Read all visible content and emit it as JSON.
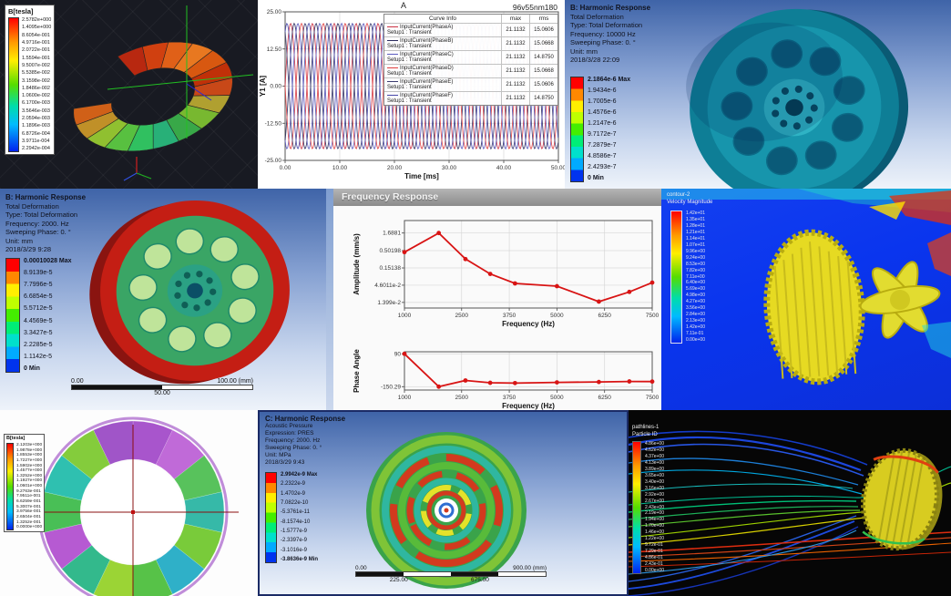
{
  "panels": {
    "flux_torus": {
      "legend_title": "B[tesla]",
      "legend_values": [
        "2.5782e+000",
        "1.4095e+000",
        "8.6054e-001",
        "4.9716e-001",
        "2.0722e-001",
        "1.5594e-001",
        "9.5007e-002",
        "5.5385e-002",
        "3.1598e-002",
        "1.8486e-002",
        "1.0600e-002",
        "6.1700e-003",
        "3.5646e-003",
        "2.0594e-003",
        "1.1896e-003",
        "6.8726e-004",
        "3.9711e-004",
        "2.2942e-004"
      ],
      "segment_colors": [
        "#b82810",
        "#d04010",
        "#e06018",
        "#e87820",
        "#d85810",
        "#c03008",
        "#c84818",
        "#b0a030",
        "#78b830",
        "#38a848",
        "#28b078",
        "#30c060",
        "#58c040",
        "#90c030",
        "#c09028",
        "#d06018"
      ]
    },
    "current_plot": {
      "corner_label": "96v55nm180"
    },
    "harmonic_top": {
      "header": [
        "B: Harmonic Response",
        "Total Deformation",
        "Type: Total Deformation",
        "Frequency: 10000 Hz",
        "Sweeping Phase: 0. °",
        "Unit: mm",
        "2018/3/28 22:09"
      ],
      "legend_values": [
        "2.1864e-6 Max",
        "1.9434e-6",
        "1.7005e-6",
        "1.4576e-6",
        "1.2147e-6",
        "9.7172e-7",
        "7.2879e-7",
        "4.8586e-7",
        "2.4293e-7",
        "0 Min"
      ]
    },
    "harmonic_mid": {
      "header": [
        "B: Harmonic Response",
        "Total Deformation",
        "Type: Total Deformation",
        "Frequency: 2000. Hz",
        "Sweeping Phase: 0. °",
        "Unit: mm",
        "2018/3/29 9:28"
      ],
      "legend_values": [
        "0.00010028 Max",
        "8.9139e-5",
        "7.7996e-5",
        "6.6854e-5",
        "5.5712e-5",
        "4.4569e-5",
        "3.3427e-5",
        "2.2285e-5",
        "1.1142e-5",
        "0 Min"
      ],
      "scale": {
        "left": "0.00",
        "right": "100.00 (mm)",
        "mid": "50.00"
      }
    },
    "freq_window": {
      "title": "Frequency Response"
    },
    "cfd": {
      "legend_header": [
        "contour-2",
        "Velocity Magnitude"
      ],
      "legend_values": [
        "1.42e+01",
        "1.35e+01",
        "1.28e+01",
        "1.21e+01",
        "1.14e+01",
        "1.07e+01",
        "9.96e+00",
        "9.24e+00",
        "8.53e+00",
        "7.82e+00",
        "7.11e+00",
        "6.40e+00",
        "5.69e+00",
        "4.98e+00",
        "4.27e+00",
        "3.56e+00",
        "2.84e+00",
        "2.13e+00",
        "1.42e+00",
        "7.11e-01",
        "0.00e+00"
      ]
    },
    "ring": {
      "legend_title": "B[tesla]",
      "legend_values": [
        "2.1203e+000",
        "1.9878e+000",
        "1.8553e+000",
        "1.7227e+000",
        "1.5902e+000",
        "1.4577e+000",
        "1.3252e+000",
        "1.1927e+000",
        "1.0601e+000",
        "9.2763e-001",
        "7.9511e-001",
        "6.6259e-001",
        "5.3007e-001",
        "3.9756e-001",
        "2.6504e-001",
        "1.3252e-001",
        "0.0000e+000"
      ],
      "segment_colors": [
        "#a855cc",
        "#c06ad8",
        "#58c25c",
        "#36b9a8",
        "#79cb3a",
        "#2fb0c8",
        "#57c248",
        "#9bd435",
        "#33b98c",
        "#b65ad2",
        "#49bf56",
        "#2fc0b0",
        "#84cc3c",
        "#a055c8"
      ]
    },
    "acoustic": {
      "header": [
        "C: Harmonic Response",
        "Acoustic Pressure",
        "Expression: PRES",
        "Frequency: 2000. Hz",
        "Sweeping Phase: 0. °",
        "Unit: MPa",
        "2018/3/29 9:43"
      ],
      "legend_values": [
        "2.9942e-9 Max",
        "2.2322e-9",
        "1.4702e-9",
        "7.0822e-10",
        "-5.3761e-11",
        "-8.1574e-10",
        "-1.5777e-9",
        "-2.3397e-9",
        "-3.1016e-9",
        "-3.8636e-9 Min"
      ],
      "scale": {
        "left": "0.00",
        "right": "900.00 (mm)",
        "m1": "225.00",
        "m2": "675.00"
      }
    },
    "streamlines": {
      "legend_header": [
        "pathlines-1",
        "Particle ID"
      ],
      "legend_values": [
        "4.86e+00",
        "4.62e+00",
        "4.37e+00",
        "4.13e+00",
        "3.89e+00",
        "3.65e+00",
        "3.40e+00",
        "3.16e+00",
        "2.92e+00",
        "2.67e+00",
        "2.43e+00",
        "2.19e+00",
        "1.94e+00",
        "1.70e+00",
        "1.46e+00",
        "1.22e+00",
        "9.72e-01",
        "7.29e-01",
        "4.86e-01",
        "2.43e-01",
        "0.00e+00"
      ]
    }
  },
  "chart_data": [
    {
      "type": "line",
      "name": "six-phase-input-currents",
      "title": "A",
      "xlabel": "Time [ms]",
      "ylabel": "Y1 [A]",
      "xlim": [
        0,
        50
      ],
      "ylim": [
        -25,
        25
      ],
      "xticks": [
        0,
        10,
        20,
        30,
        40,
        50
      ],
      "xtick_labels": [
        "0.00",
        "10.00",
        "20.00",
        "30.00",
        "40.00",
        "50.00"
      ],
      "yticks": [
        25,
        12.5,
        0,
        -12.5,
        -25
      ],
      "ytick_labels": [
        "25.00",
        "12.50",
        "0.00",
        "-12.50",
        "-25.00"
      ],
      "freq_hz": 250,
      "grid": true,
      "legend_position": "upper right",
      "table_headers": [
        "Curve Info",
        "max",
        "rms"
      ],
      "layout": {
        "l": 30,
        "t": 13,
        "r": 330,
        "b": 176,
        "ylx": 22
      },
      "series": [
        {
          "name": "InputCurrent(PhaseA)",
          "setup": "Setup1 : Transient",
          "color": "#cc3344",
          "phase_deg": 0,
          "amplitude": 21.1132,
          "max": "21.1132",
          "rms": "15.0606"
        },
        {
          "name": "InputCurrent(PhaseB)",
          "setup": "Setup1 : Transient",
          "color": "#2b2b5e",
          "phase_deg": -60,
          "amplitude": 21.1132,
          "max": "21.1132",
          "rms": "15.0668"
        },
        {
          "name": "InputCurrent(PhaseC)",
          "setup": "Setup1 : Transient",
          "color": "#5c5cc0",
          "phase_deg": -120,
          "amplitude": 21.1132,
          "max": "21.1132",
          "rms": "14.8750"
        },
        {
          "name": "InputCurrent(PhaseD)",
          "setup": "Setup1 : Transient",
          "color": "#e04040",
          "phase_deg": -180,
          "amplitude": 21.1132,
          "max": "21.1132",
          "rms": "15.0668"
        },
        {
          "name": "InputCurrent(PhaseE)",
          "setup": "Setup1 : Transient",
          "color": "#3c3c70",
          "phase_deg": -240,
          "amplitude": 21.1132,
          "max": "21.1132",
          "rms": "15.0606"
        },
        {
          "name": "InputCurrent(PhaseF)",
          "setup": "Setup1 : Transient",
          "color": "#4646a8",
          "phase_deg": -300,
          "amplitude": 21.1132,
          "max": "21.1132",
          "rms": "14.8750"
        }
      ]
    },
    {
      "type": "line",
      "name": "frequency-response-amplitude",
      "ylabel": "Amplitude (mm/s)",
      "xlabel": "Frequency (Hz)",
      "yscale": "log",
      "ylim": [
        0.0095,
        4.0
      ],
      "x": [
        1000,
        1900,
        2600,
        3250,
        3900,
        5000,
        6100,
        6900,
        7500
      ],
      "y": [
        0.45,
        1.6881,
        0.28,
        0.1,
        0.052,
        0.043,
        0.0148,
        0.029,
        0.055
      ],
      "xticks": [
        1000,
        2500,
        3750,
        5000,
        6250,
        7500
      ],
      "xtick_labels": [
        "1000",
        "2500",
        "3750",
        "5000",
        "6250",
        "7500"
      ],
      "yticks": [
        1.6881,
        0.50198,
        0.15138,
        0.046011,
        0.01399
      ],
      "ytick_labels": [
        "1.6881",
        "0.50198",
        "0.15138",
        "4.6011e-2",
        "1.399e-2"
      ],
      "color": "#d81414",
      "grid": true,
      "layout": {
        "l": 78,
        "t": 10,
        "r": 350,
        "b": 106,
        "ylx": 50
      }
    },
    {
      "type": "line",
      "name": "frequency-response-phase",
      "ylabel": "Phase Angle",
      "xlabel": "Frequency (Hz)",
      "ylim": [
        -175,
        105
      ],
      "x": [
        1000,
        1900,
        2600,
        3250,
        3900,
        5000,
        6100,
        6900,
        7500
      ],
      "y": [
        90,
        -150.29,
        -105,
        -122,
        -124,
        -119,
        -116,
        -112,
        -113
      ],
      "xticks": [
        1000,
        2500,
        3750,
        5000,
        6250,
        7500
      ],
      "xtick_labels": [
        "1000",
        "2500",
        "3750",
        "5000",
        "6250",
        "7500"
      ],
      "yticks": [
        90,
        -150.29
      ],
      "ytick_labels": [
        "90",
        "-150.29"
      ],
      "color": "#d81414",
      "grid": true,
      "layout": {
        "l": 78,
        "t": 8,
        "r": 350,
        "b": 50,
        "ylx": 50
      }
    }
  ]
}
